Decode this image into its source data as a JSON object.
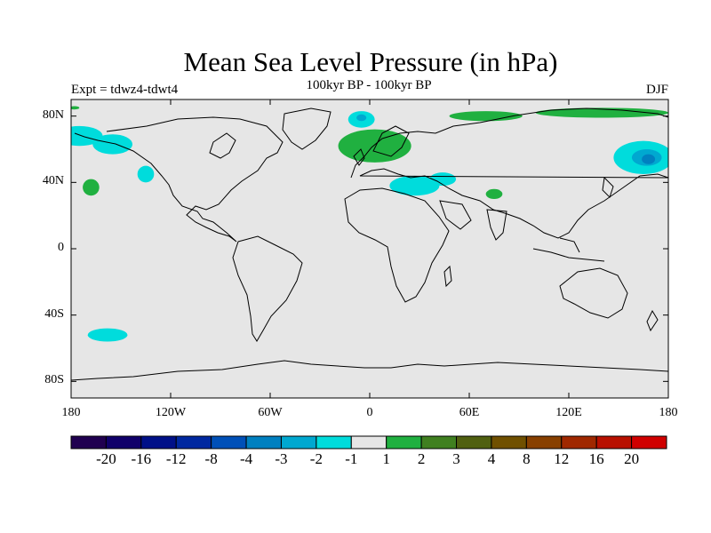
{
  "header": {
    "title": "Mean Sea Level Pressure (in hPa)",
    "expt": "Expt = tdwz4-tdwt4",
    "subtitle": "100kyr BP - 100kyr BP",
    "season": "DJF"
  },
  "map": {
    "background_color": "#e6e6e6",
    "coastline_color": "#000000",
    "lon_range": [
      -180,
      180
    ],
    "lat_range": [
      -90,
      90
    ],
    "lat_ticks": [
      {
        "value": 80,
        "label": "80N"
      },
      {
        "value": 40,
        "label": "40N"
      },
      {
        "value": 0,
        "label": "0"
      },
      {
        "value": -40,
        "label": "40S"
      },
      {
        "value": -80,
        "label": "80S"
      }
    ],
    "lon_ticks": [
      {
        "value": -180,
        "label": "180"
      },
      {
        "value": -120,
        "label": "120W"
      },
      {
        "value": -60,
        "label": "60W"
      },
      {
        "value": 0,
        "label": "0"
      },
      {
        "value": 60,
        "label": "60E"
      },
      {
        "value": 120,
        "label": "120E"
      },
      {
        "value": 180,
        "label": "180"
      }
    ],
    "anomaly_regions": [
      {
        "name": "arctic-canada",
        "level": "-1",
        "color": "#00dcdc",
        "lon": -175,
        "lat": 68,
        "rx": 14,
        "ry": 6
      },
      {
        "name": "west-canada",
        "level": "-1",
        "color": "#00dcdc",
        "lon": -155,
        "lat": 63,
        "rx": 12,
        "ry": 6
      },
      {
        "name": "pacific-nw",
        "level": "-1",
        "color": "#00dcdc",
        "lon": -135,
        "lat": 45,
        "rx": 5,
        "ry": 5
      },
      {
        "name": "greenland-east",
        "level": "-1",
        "color": "#00dcdc",
        "lon": -5,
        "lat": 78,
        "rx": 8,
        "ry": 5
      },
      {
        "name": "greenland-east-inner",
        "level": "-2",
        "color": "#00a8d0",
        "lon": -5,
        "lat": 79,
        "rx": 3,
        "ry": 2
      },
      {
        "name": "mediterranean",
        "level": "-1",
        "color": "#00dcdc",
        "lon": 27,
        "lat": 38,
        "rx": 15,
        "ry": 6
      },
      {
        "name": "caspian",
        "level": "-1",
        "color": "#00dcdc",
        "lon": 44,
        "lat": 42,
        "rx": 8,
        "ry": 4
      },
      {
        "name": "siberia-east",
        "level": "-1",
        "color": "#00dcdc",
        "lon": 165,
        "lat": 55,
        "rx": 18,
        "ry": 10
      },
      {
        "name": "siberia-east-inner",
        "level": "-2",
        "color": "#00a8d0",
        "lon": 167,
        "lat": 55,
        "rx": 9,
        "ry": 5
      },
      {
        "name": "siberia-east-core",
        "level": "-3",
        "color": "#0080c0",
        "lon": 168,
        "lat": 54,
        "rx": 4,
        "ry": 3
      },
      {
        "name": "south-pacific",
        "level": "-1",
        "color": "#00dcdc",
        "lon": -158,
        "lat": -52,
        "rx": 12,
        "ry": 4
      },
      {
        "name": "north-atlantic",
        "level": "1",
        "color": "#20b040",
        "lon": 3,
        "lat": 62,
        "rx": 22,
        "ry": 10
      },
      {
        "name": "barents",
        "level": "1",
        "color": "#20b040",
        "lon": 70,
        "lat": 80,
        "rx": 22,
        "ry": 3
      },
      {
        "name": "arctic-east",
        "level": "1",
        "color": "#20b040",
        "lon": 140,
        "lat": 82,
        "rx": 40,
        "ry": 3
      },
      {
        "name": "central-asia",
        "level": "1",
        "color": "#20b040",
        "lon": 75,
        "lat": 33,
        "rx": 5,
        "ry": 3
      },
      {
        "name": "pacific-central",
        "level": "1",
        "color": "#20b040",
        "lon": -168,
        "lat": 37,
        "rx": 5,
        "ry": 5
      },
      {
        "name": "north-america-edge",
        "level": "1",
        "color": "#20b040",
        "lon": -178,
        "lat": 85,
        "rx": 3,
        "ry": 1
      }
    ]
  },
  "colorbar": {
    "colors": [
      "#200050",
      "#10006a",
      "#001088",
      "#0028a0",
      "#0050b8",
      "#0080c0",
      "#00a8d0",
      "#00dcdc",
      "#e6e6e6",
      "#20b040",
      "#408020",
      "#506010",
      "#705000",
      "#884000",
      "#a02800",
      "#b81000",
      "#d00000"
    ],
    "labels": [
      "-20",
      "-16",
      "-12",
      "-8",
      "-4",
      "-3",
      "-2",
      "-1",
      "1",
      "2",
      "3",
      "4",
      "8",
      "12",
      "16",
      "20"
    ]
  }
}
